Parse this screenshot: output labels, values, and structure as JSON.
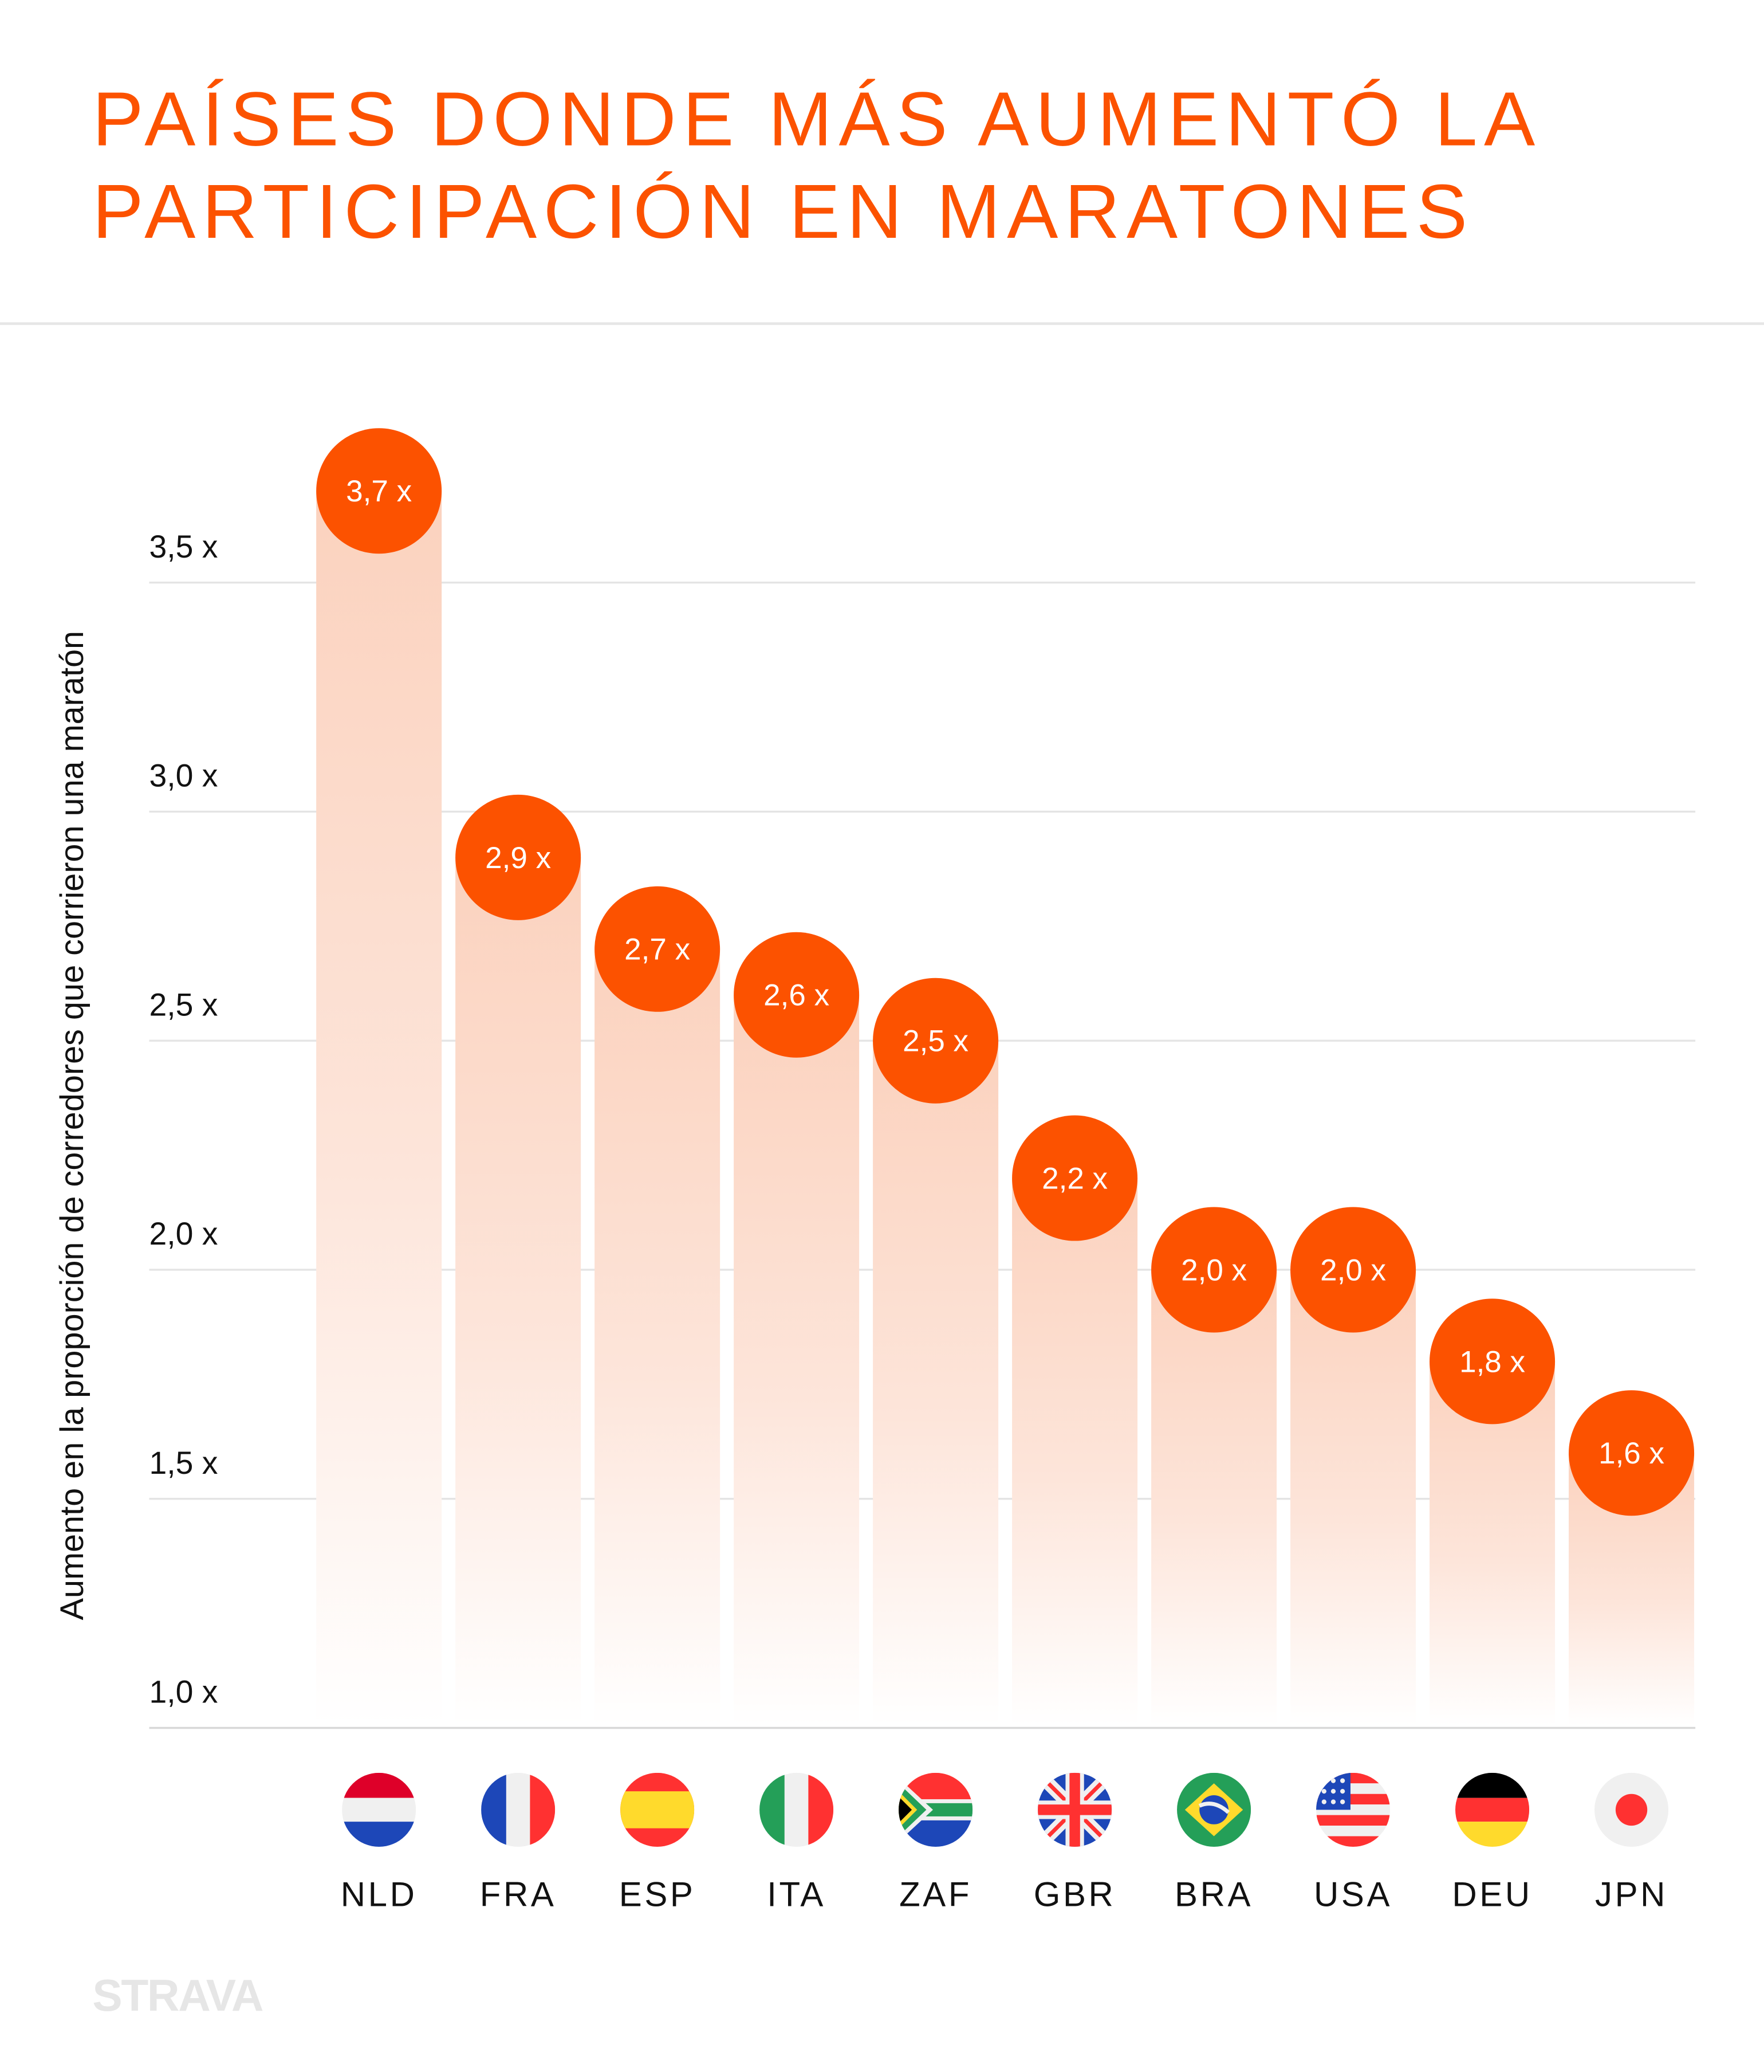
{
  "header": {
    "title_line1": "PAÍSES DONDE MÁS AUMENTÓ LA",
    "title_line2": "PARTICIPACIÓN EN MARATONES"
  },
  "brand": {
    "logo_text": "STRAVA",
    "logo_color": "#E6E6E6"
  },
  "colors": {
    "accent": "#FC5200",
    "bar_top": "#FBD2BE",
    "grid": "#E2E2E2"
  },
  "chart_data": {
    "type": "bar",
    "title": "PAÍSES DONDE MÁS AUMENTÓ LA PARTICIPACIÓN EN MARATONES",
    "xlabel": "",
    "ylabel": "Aumento en la proporción de corredores que corrieron una maratón",
    "ylim": [
      1.0,
      3.7
    ],
    "grid": true,
    "yticks": [
      1.0,
      1.5,
      2.0,
      2.5,
      3.0,
      3.5
    ],
    "ytick_labels": [
      "1,0 x",
      "1,5 x",
      "2,0 x",
      "2,5 x",
      "3,0 x",
      "3,5 x"
    ],
    "categories": [
      "NLD",
      "FRA",
      "ESP",
      "ITA",
      "ZAF",
      "GBR",
      "BRA",
      "USA",
      "DEU",
      "JPN"
    ],
    "values": [
      3.7,
      2.9,
      2.7,
      2.6,
      2.5,
      2.2,
      2.0,
      2.0,
      1.8,
      1.6
    ],
    "data_labels": [
      "3,7 x",
      "2,9 x",
      "2,7 x",
      "2,6 x",
      "2,5 x",
      "2,2 x",
      "2,0 x",
      "2,0 x",
      "1,8 x",
      "1,6 x"
    ],
    "flags": [
      "netherlands-flag-icon",
      "france-flag-icon",
      "spain-flag-icon",
      "italy-flag-icon",
      "south-africa-flag-icon",
      "uk-flag-icon",
      "brazil-flag-icon",
      "usa-flag-icon",
      "germany-flag-icon",
      "japan-flag-icon"
    ]
  }
}
